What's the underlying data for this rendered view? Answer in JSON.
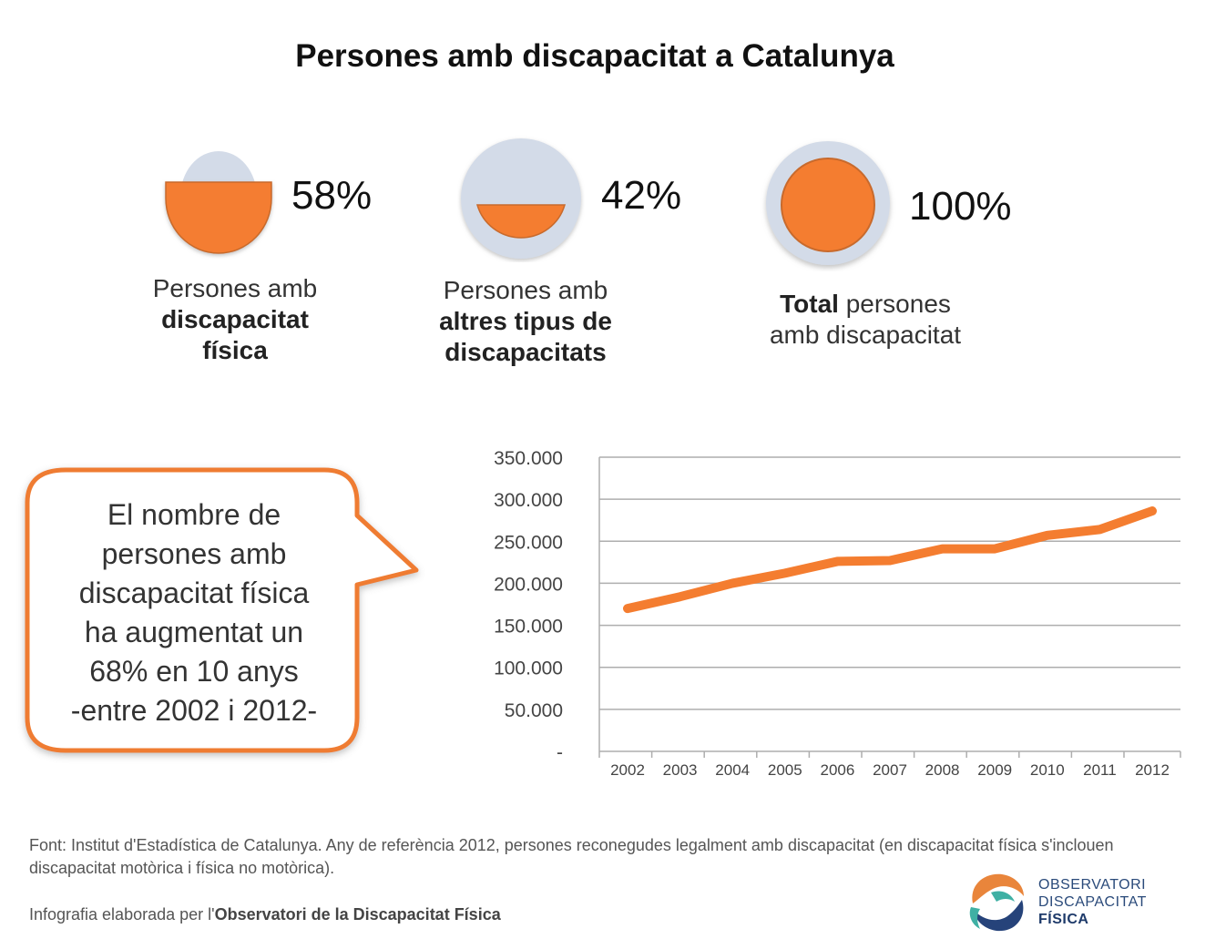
{
  "title": "Persones amb discapacitat a Catalunya",
  "colors": {
    "accent": "#f47d30",
    "circle_bg": "#d3dbe8",
    "grid": "#aeaeae"
  },
  "gauges": [
    {
      "id": "fisica",
      "percent": 58,
      "label": "58%",
      "caption_normal": "Persones amb",
      "caption_bold": [
        "discapacitat",
        "física"
      ]
    },
    {
      "id": "altres",
      "percent": 42,
      "label": "42%",
      "caption_normal": "Persones amb",
      "caption_bold": [
        "altres tipus de",
        "discapacitats"
      ]
    },
    {
      "id": "total",
      "percent": 100,
      "label": "100%",
      "caption_bold_prefix": "Total",
      "caption_line1_rest": " persones",
      "caption_line2": "amb discapacitat"
    }
  ],
  "callout": {
    "lines": [
      "El nombre de",
      "persones amb",
      "discapacitat física",
      "ha augmentat un",
      "68% en 10 anys",
      "-entre 2002 i 2012-"
    ]
  },
  "chart_data": {
    "type": "line",
    "title": "",
    "xlabel": "",
    "ylabel": "",
    "x": [
      "2002",
      "2003",
      "2004",
      "2005",
      "2006",
      "2007",
      "2008",
      "2009",
      "2010",
      "2011",
      "2012"
    ],
    "series": [
      {
        "values": [
          170000,
          184000,
          200000,
          212000,
          226000,
          227000,
          241000,
          241000,
          257000,
          264000,
          286000
        ]
      }
    ],
    "ylim": [
      0,
      350000
    ],
    "yticks": [
      0,
      50000,
      100000,
      150000,
      200000,
      250000,
      300000,
      350000
    ],
    "ytick_labels": [
      "-",
      "50.000",
      "100.000",
      "150.000",
      "200.000",
      "250.000",
      "300.000",
      "350.000"
    ],
    "grid": true,
    "legend": "none"
  },
  "footnote": {
    "source": "Font: Institut d'Estadística de Catalunya. Any de referència 2012, persones reconegudes legalment amb discapacitat (en discapacitat física s'inclouen discapacitat motòrica i física no motòrica).",
    "credit_prefix": "Infografia elaborada per l'",
    "credit_bold": "Observatori de la Discapacitat Física"
  },
  "logo": {
    "line1": "OBSERVATORI",
    "line2": "DISCAPACITAT",
    "line3": "FÍSICA"
  }
}
